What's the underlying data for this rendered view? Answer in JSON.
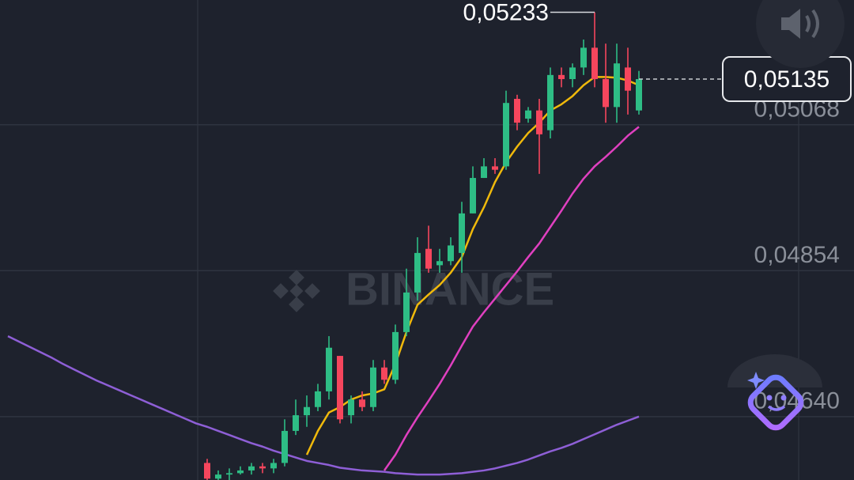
{
  "chart_data": {
    "type": "candlestick",
    "watermark": "BINANCE",
    "ylim": [
      0.04547,
      0.05251
    ],
    "yticks": [
      {
        "value": 0.05068,
        "label": "0,05068"
      },
      {
        "value": 0.04854,
        "label": "0,04854"
      },
      {
        "value": 0.0464,
        "label": "0,04640"
      }
    ],
    "grid": true,
    "up_color": "#2ebd85",
    "down_color": "#f6465d",
    "candles": {
      "open": [
        null,
        null,
        null,
        null,
        null,
        null,
        null,
        null,
        null,
        null,
        null,
        null,
        null,
        null,
        null,
        null,
        null,
        null,
        0.04572,
        0.04549,
        0.04555,
        0.04557,
        0.04561,
        0.04567,
        0.04564,
        0.04572,
        0.04619,
        0.04642,
        0.04654,
        0.04677,
        0.04729,
        0.04642,
        0.04665,
        0.04654,
        0.04712,
        0.04694,
        0.04764,
        0.04822,
        0.04886,
        0.04862,
        0.04868,
        0.0488,
        0.04938,
        0.0499,
        0.05007,
        0.05007,
        0.05106,
        0.05077,
        0.05089,
        0.0506,
        0.05141,
        0.05135,
        0.05152,
        0.05181,
        0.05135,
        0.05094,
        0.05152,
        0.05089
      ],
      "high": [
        null,
        null,
        null,
        null,
        null,
        null,
        null,
        null,
        null,
        null,
        null,
        null,
        null,
        null,
        null,
        null,
        null,
        null,
        0.04578,
        0.04561,
        0.04564,
        0.04567,
        0.04572,
        0.04572,
        0.04578,
        0.04636,
        0.04665,
        0.04671,
        0.04688,
        0.04758,
        0.04729,
        0.04671,
        0.04677,
        0.04723,
        0.04723,
        0.04775,
        0.04857,
        0.04903,
        0.0492,
        0.04886,
        0.04903,
        0.04955,
        0.05007,
        0.05019,
        0.05019,
        0.05118,
        0.05112,
        0.05094,
        0.05106,
        0.05152,
        0.05152,
        0.05158,
        0.05193,
        0.05233,
        0.05187,
        0.05187,
        0.05181,
        0.05147
      ],
      "low": [
        null,
        null,
        null,
        null,
        null,
        null,
        null,
        null,
        null,
        null,
        null,
        null,
        null,
        null,
        null,
        null,
        null,
        null,
        0.04547,
        0.04547,
        0.04547,
        0.04555,
        0.04555,
        0.04557,
        0.04557,
        0.04567,
        0.04613,
        0.04625,
        0.04648,
        0.04665,
        0.0463,
        0.0463,
        0.04648,
        0.04648,
        0.04688,
        0.04688,
        0.04758,
        0.0481,
        0.04851,
        0.04851,
        0.04862,
        0.04851,
        0.04938,
        0.0499,
        0.04996,
        0.05002,
        0.0506,
        0.05071,
        0.04996,
        0.05048,
        0.05123,
        0.05123,
        0.05141,
        0.05123,
        0.05071,
        0.05071,
        0.05083,
        0.05083
      ],
      "close": [
        null,
        null,
        null,
        null,
        null,
        null,
        null,
        null,
        null,
        null,
        null,
        null,
        null,
        null,
        null,
        null,
        null,
        null,
        0.04549,
        0.04555,
        0.04557,
        0.04561,
        0.04567,
        0.04564,
        0.04572,
        0.04619,
        0.04642,
        0.04654,
        0.04677,
        0.04741,
        0.04636,
        0.04665,
        0.04654,
        0.04712,
        0.04694,
        0.04764,
        0.04822,
        0.0488,
        0.04857,
        0.04868,
        0.04891,
        0.04938,
        0.0499,
        0.05007,
        0.05002,
        0.051,
        0.05071,
        0.05089,
        0.05054,
        0.05141,
        0.05135,
        0.05152,
        0.05181,
        0.05135,
        0.05094,
        0.05158,
        0.05118,
        0.05135
      ]
    },
    "lines": [
      {
        "color": "#8e5fd6",
        "values": [
          0.04758,
          0.0475,
          0.04742,
          0.04734,
          0.04726,
          0.04717,
          0.04709,
          0.04701,
          0.04693,
          0.04686,
          0.04679,
          0.04672,
          0.04665,
          0.04658,
          0.04651,
          0.04644,
          0.04637,
          0.0463,
          0.04625,
          0.04619,
          0.04613,
          0.04607,
          0.04601,
          0.04596,
          0.0459,
          0.04585,
          0.0458,
          0.04575,
          0.04572,
          0.04569,
          0.04565,
          0.04563,
          0.04561,
          0.0456,
          0.04559,
          0.04557,
          0.04556,
          0.04555,
          0.04555,
          0.04555,
          0.04556,
          0.04557,
          0.04559,
          0.04561,
          0.04564,
          0.04568,
          0.04572,
          0.04577,
          0.04583,
          0.04589,
          0.04594,
          0.046,
          0.04607,
          0.04614,
          0.04621,
          0.04628,
          0.04634,
          0.0464
        ]
      },
      {
        "color": "#e040c0",
        "values": [
          null,
          null,
          null,
          null,
          null,
          null,
          null,
          null,
          null,
          null,
          null,
          null,
          null,
          null,
          null,
          null,
          null,
          null,
          null,
          null,
          null,
          null,
          null,
          null,
          null,
          null,
          null,
          null,
          null,
          null,
          null,
          null,
          null,
          null,
          0.04561,
          0.04584,
          0.04613,
          0.04639,
          0.04663,
          0.04688,
          0.04715,
          0.04744,
          0.04772,
          0.04793,
          0.04813,
          0.04833,
          0.04853,
          0.04874,
          0.04894,
          0.04918,
          0.04942,
          0.04967,
          0.04989,
          0.05007,
          0.05021,
          0.05036,
          0.05052,
          0.05065
        ]
      },
      {
        "color": "#f0b90b",
        "values": [
          null,
          null,
          null,
          null,
          null,
          null,
          null,
          null,
          null,
          null,
          null,
          null,
          null,
          null,
          null,
          null,
          null,
          null,
          null,
          null,
          null,
          null,
          null,
          null,
          null,
          null,
          null,
          0.04584,
          0.04619,
          0.04646,
          0.04654,
          0.04665,
          0.04671,
          0.04674,
          0.0468,
          0.04717,
          0.04764,
          0.04804,
          0.04819,
          0.04833,
          0.04851,
          0.04874,
          0.04915,
          0.04947,
          0.04984,
          0.05013,
          0.05036,
          0.05056,
          0.05071,
          0.05089,
          0.05098,
          0.0511,
          0.05126,
          0.05138,
          0.05138,
          0.05137,
          0.05133,
          0.05126
        ]
      }
    ],
    "annotations": [
      {
        "text": "0,05233",
        "value": 0.05233
      },
      {
        "text": "0,05135",
        "value": 0.05135
      }
    ]
  }
}
